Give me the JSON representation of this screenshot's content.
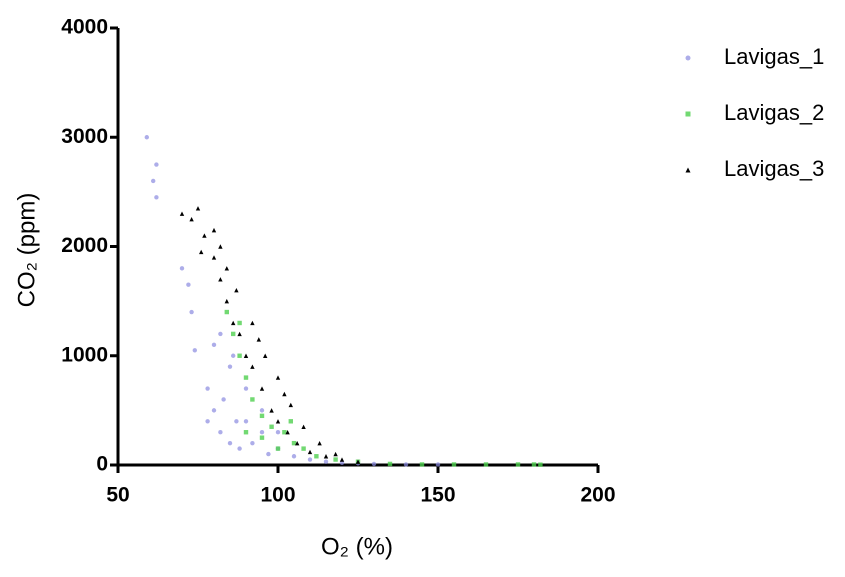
{
  "chart_data": {
    "type": "scatter",
    "x_label": "O₂ (%)",
    "y_label": "CO₂ (ppm)",
    "xlim": [
      50,
      200
    ],
    "xticks": [
      50,
      100,
      150,
      200
    ],
    "ylim": [
      0,
      4000
    ],
    "yticks": [
      0,
      1000,
      2000,
      3000,
      4000
    ],
    "series": [
      {
        "name": "Lavigas_1",
        "color": "#8a8ae0",
        "marker": "circle",
        "x": [
          59,
          62,
          62,
          61,
          70,
          72,
          73,
          74,
          78,
          80,
          82,
          85,
          88,
          90,
          95,
          100,
          105,
          110,
          120,
          130,
          140,
          150,
          80,
          85,
          90,
          95,
          100,
          83,
          87,
          92,
          97,
          115,
          125,
          78,
          82,
          86
        ],
        "values": [
          3000,
          2750,
          2450,
          2600,
          1800,
          1650,
          1400,
          1050,
          700,
          500,
          300,
          200,
          150,
          400,
          300,
          150,
          80,
          50,
          20,
          10,
          5,
          5,
          1100,
          900,
          700,
          500,
          300,
          600,
          400,
          200,
          100,
          30,
          15,
          400,
          1200,
          1000
        ]
      },
      {
        "name": "Lavigas_2",
        "color": "#4fcf4f",
        "marker": "square",
        "x": [
          84,
          86,
          88,
          90,
          92,
          95,
          98,
          102,
          105,
          108,
          112,
          118,
          125,
          135,
          145,
          155,
          165,
          175,
          180,
          182,
          88,
          90,
          95,
          100,
          104
        ],
        "values": [
          1400,
          1200,
          1000,
          800,
          600,
          450,
          350,
          300,
          200,
          150,
          80,
          50,
          30,
          10,
          5,
          5,
          5,
          5,
          5,
          3,
          1300,
          300,
          250,
          150,
          400
        ]
      },
      {
        "name": "Lavigas_3",
        "color": "#000000",
        "marker": "triangle",
        "x": [
          70,
          73,
          75,
          77,
          80,
          82,
          84,
          86,
          88,
          90,
          92,
          95,
          98,
          100,
          103,
          106,
          110,
          115,
          120,
          125,
          80,
          84,
          87,
          92,
          96,
          100,
          104,
          108,
          113,
          118,
          76,
          82,
          94,
          102
        ],
        "values": [
          2300,
          2250,
          2350,
          2100,
          1900,
          1700,
          1500,
          1300,
          1200,
          1000,
          900,
          700,
          500,
          400,
          300,
          200,
          120,
          80,
          50,
          30,
          2150,
          1800,
          1600,
          1300,
          1000,
          800,
          550,
          350,
          200,
          100,
          1950,
          2000,
          1150,
          650
        ]
      }
    ]
  }
}
